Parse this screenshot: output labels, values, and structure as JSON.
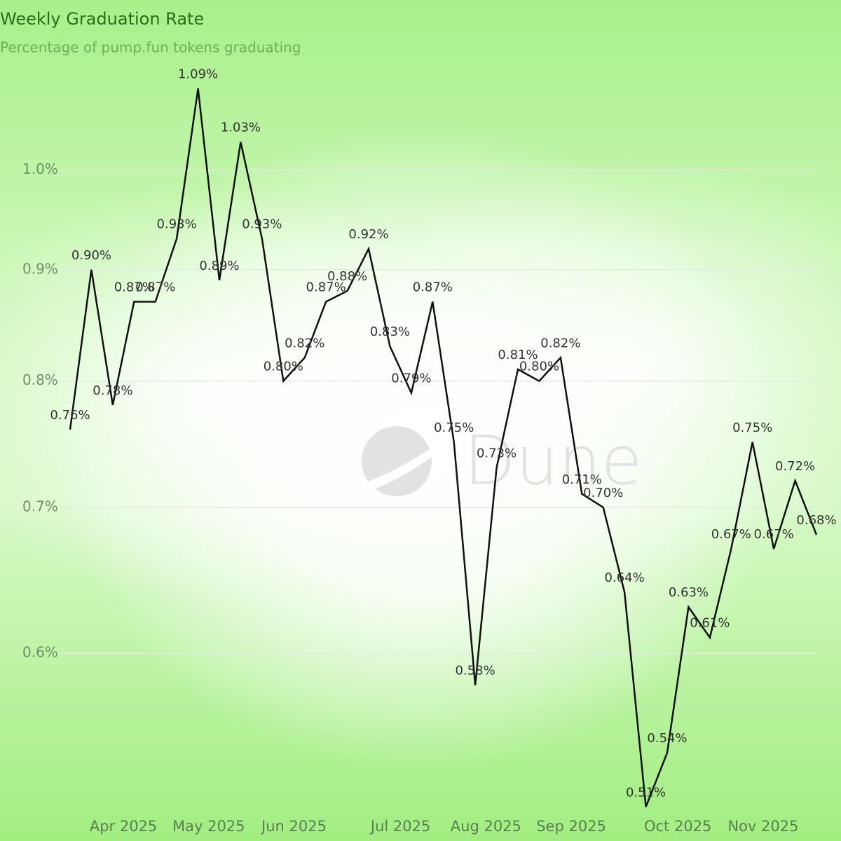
{
  "chart_data": {
    "type": "line",
    "title": "Weekly Graduation Rate",
    "subtitle": "Percentage of pump.fun tokens graduating",
    "watermark": "Dune",
    "x": [
      "2025-03",
      "2025-03",
      "2025-03",
      "2025-04",
      "2025-04",
      "2025-04",
      "2025-04",
      "2025-05",
      "2025-05",
      "2025-05",
      "2025-05",
      "2025-06",
      "2025-06",
      "2025-06",
      "2025-06",
      "2025-06",
      "2025-07",
      "2025-07",
      "2025-07",
      "2025-07",
      "2025-08",
      "2025-08",
      "2025-08",
      "2025-08",
      "2025-09",
      "2025-09",
      "2025-09",
      "2025-09",
      "2025-09",
      "2025-10",
      "2025-10",
      "2025-10",
      "2025-10",
      "2025-11",
      "2025-11",
      "2025-11"
    ],
    "values": [
      0.76,
      0.9,
      0.78,
      0.87,
      0.87,
      0.93,
      1.09,
      0.89,
      1.03,
      0.93,
      0.8,
      0.82,
      0.87,
      0.88,
      0.92,
      0.83,
      0.79,
      0.87,
      0.75,
      0.58,
      0.73,
      0.81,
      0.8,
      0.82,
      0.71,
      0.7,
      0.64,
      0.51,
      0.54,
      0.63,
      0.61,
      0.67,
      0.75,
      0.67,
      0.72,
      0.68
    ],
    "value_labels": [
      "0.76%",
      "0.90%",
      "0.78%",
      "0.87%",
      "0.87%",
      "0.93%",
      "1.09%",
      "0.89%",
      "1.03%",
      "0.93%",
      "0.80%",
      "0.82%",
      "0.87%",
      "0.88%",
      "0.92%",
      "0.83%",
      "0.79%",
      "0.87%",
      "0.75%",
      "0.58%",
      "0.73%",
      "0.81%",
      "0.80%",
      "0.82%",
      "0.71%",
      "0.70%",
      "0.64%",
      "0.51%",
      "0.54%",
      "0.63%",
      "0.61%",
      "0.67%",
      "0.75%",
      "0.67%",
      "0.72%",
      "0.68%"
    ],
    "color": "#111111",
    "log_scale": true,
    "grid": true,
    "ylim": [
      0.5,
      1.1
    ],
    "yticks": [
      {
        "value": 0.6,
        "label": "0.6%"
      },
      {
        "value": 0.7,
        "label": "0.7%"
      },
      {
        "value": 0.8,
        "label": "0.8%"
      },
      {
        "value": 0.9,
        "label": "0.9%"
      },
      {
        "value": 1.0,
        "label": "1.0%"
      }
    ],
    "xticks": [
      {
        "value": "2025-04",
        "label": "Apr 2025"
      },
      {
        "value": "2025-05",
        "label": "May 2025"
      },
      {
        "value": "2025-06",
        "label": "Jun 2025"
      },
      {
        "value": "2025-07",
        "label": "Jul 2025"
      },
      {
        "value": "2025-08",
        "label": "Aug 2025"
      },
      {
        "value": "2025-09",
        "label": "Sep 2025"
      },
      {
        "value": "2025-10",
        "label": "Oct 2025"
      },
      {
        "value": "2025-11",
        "label": "Nov 2025"
      }
    ]
  }
}
